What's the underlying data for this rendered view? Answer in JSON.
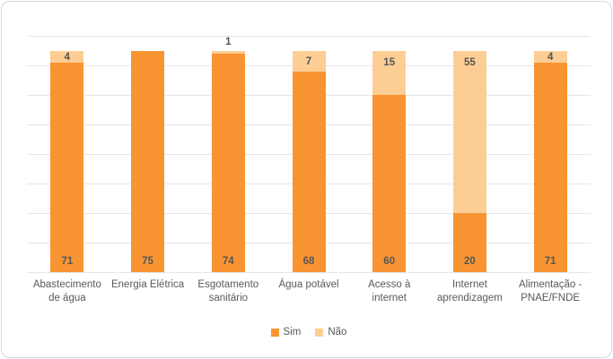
{
  "chart_data": {
    "type": "bar",
    "stacked": true,
    "title": "",
    "xlabel": "",
    "ylabel": "",
    "categories": [
      "Abastecimento de água",
      "Energia Elétrica",
      "Esgotamento sanitário",
      "Água potável",
      "Acesso à internet",
      "Internet aprendizagem",
      "Alimentação - PNAE/FNDE"
    ],
    "series": [
      {
        "name": "Sim",
        "color": "#f99432",
        "values": [
          71,
          75,
          74,
          68,
          60,
          20,
          71
        ]
      },
      {
        "name": "Não",
        "color": "#fcce94",
        "values": [
          4,
          0,
          1,
          7,
          15,
          55,
          4
        ]
      }
    ],
    "ylim": [
      0,
      80
    ],
    "gridline_step": 10,
    "grid": true,
    "y_tick_labels_visible": false,
    "legend_position": "bottom",
    "data_labels": {
      "sim_position": "inside-base",
      "nao_position": "inside-end-or-above"
    }
  },
  "colors": {
    "sim": "#f99432",
    "nao": "#fcce94",
    "gridline": "#e7e7e7",
    "label_text": "#555555",
    "axis_text": "#595959",
    "card_border": "#d8d8d8",
    "background": "#ffffff"
  },
  "legend": {
    "items": [
      {
        "label": "Sim",
        "color": "#f99432"
      },
      {
        "label": "Não",
        "color": "#fcce94"
      }
    ]
  }
}
